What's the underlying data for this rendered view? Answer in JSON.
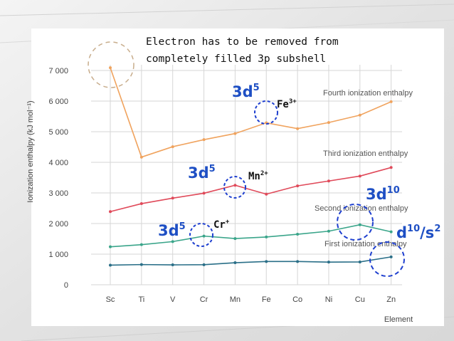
{
  "chart_data": {
    "type": "line",
    "categories": [
      "Sc",
      "Ti",
      "V",
      "Cr",
      "Mn",
      "Fe",
      "Co",
      "Ni",
      "Cu",
      "Zn"
    ],
    "xlabel": "Element",
    "ylabel": "Ionization enthalpy (kJ mol⁻¹)",
    "ylim": [
      0,
      7000
    ],
    "yticks": [
      "0",
      "1 000",
      "2 000",
      "3 000",
      "4 000",
      "5 000",
      "6 000",
      "7 000"
    ],
    "grid": true,
    "series": [
      {
        "name": "First ionization enthalpy",
        "color": "#2a6f88",
        "values": [
          640,
          660,
          650,
          655,
          720,
          760,
          760,
          740,
          745,
          910
        ]
      },
      {
        "name": "Second ionization enthalpy",
        "color": "#3aa58a",
        "values": [
          1240,
          1310,
          1410,
          1590,
          1510,
          1560,
          1650,
          1750,
          1960,
          1730
        ]
      },
      {
        "name": "Third ionization enthalpy",
        "color": "#e04a5a",
        "values": [
          2390,
          2650,
          2830,
          2990,
          3250,
          2960,
          3230,
          3390,
          3550,
          3830
        ]
      },
      {
        "name": "Fourth ionization enthalpy",
        "color": "#f0a35e",
        "values": [
          7090,
          4170,
          4510,
          4740,
          4940,
          5290,
          5100,
          5300,
          5540,
          5980
        ]
      }
    ]
  },
  "annotations": {
    "note_line1": "Electron has to be removed from",
    "note_line2": "completely filled 3p subshell",
    "fourth_config": "3d",
    "fourth_config_sup": "5",
    "fourth_ion": "Fe",
    "fourth_ion_sup": "3+",
    "third_config": "3d",
    "third_config_sup": "5",
    "third_ion": "Mn",
    "third_ion_sup": "2+",
    "second_config": "3d",
    "second_config_sup": "5",
    "second_ion": "Cr",
    "second_ion_sup": "+",
    "cu_config": "3d",
    "cu_config_sup": "10",
    "zn_config_a": "d",
    "zn_config_a_sup": "10",
    "zn_config_b": "/s",
    "zn_config_b_sup": "2"
  },
  "colors": {
    "circle_blue": "#1e3fcf",
    "circle_tan": "#c8ad8c",
    "grid": "#d6d6d6"
  }
}
